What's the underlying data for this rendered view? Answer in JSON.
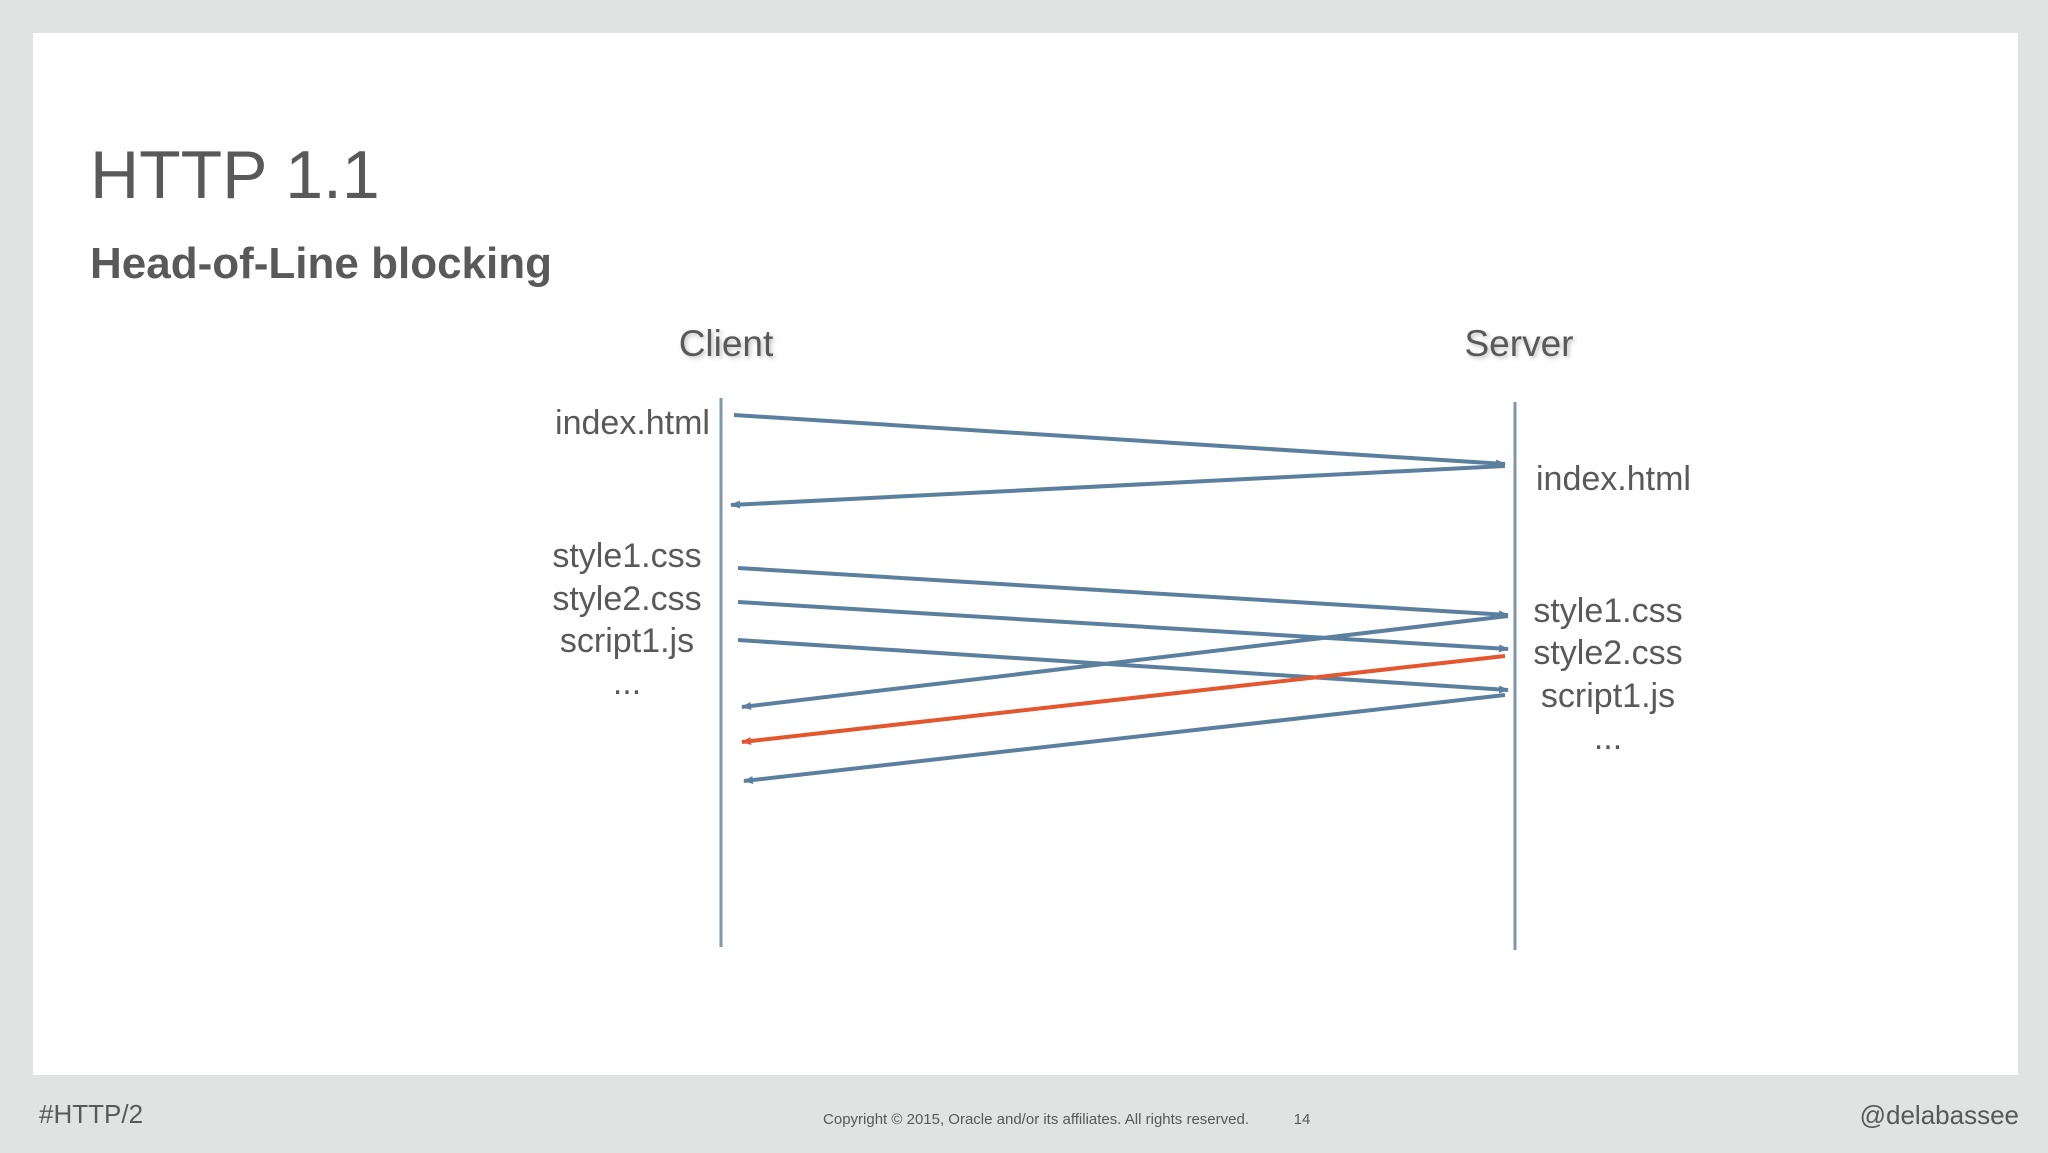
{
  "header": {
    "title": "HTTP 1.1",
    "subtitle": "Head-of-Line blocking"
  },
  "diagram": {
    "client_label": "Client",
    "server_label": "Server",
    "client_requests": [
      "index.html",
      "style1.css",
      "style2.css",
      "script1.js",
      "..."
    ],
    "server_resources": [
      "index.html",
      "style1.css",
      "style2.css",
      "script1.js",
      "..."
    ]
  },
  "footer": {
    "hashtag": "#HTTP/2",
    "copyright": "Copyright © 2015, Oracle and/or its affiliates. All rights reserved.",
    "page": "14",
    "handle": "@delabassee"
  }
}
